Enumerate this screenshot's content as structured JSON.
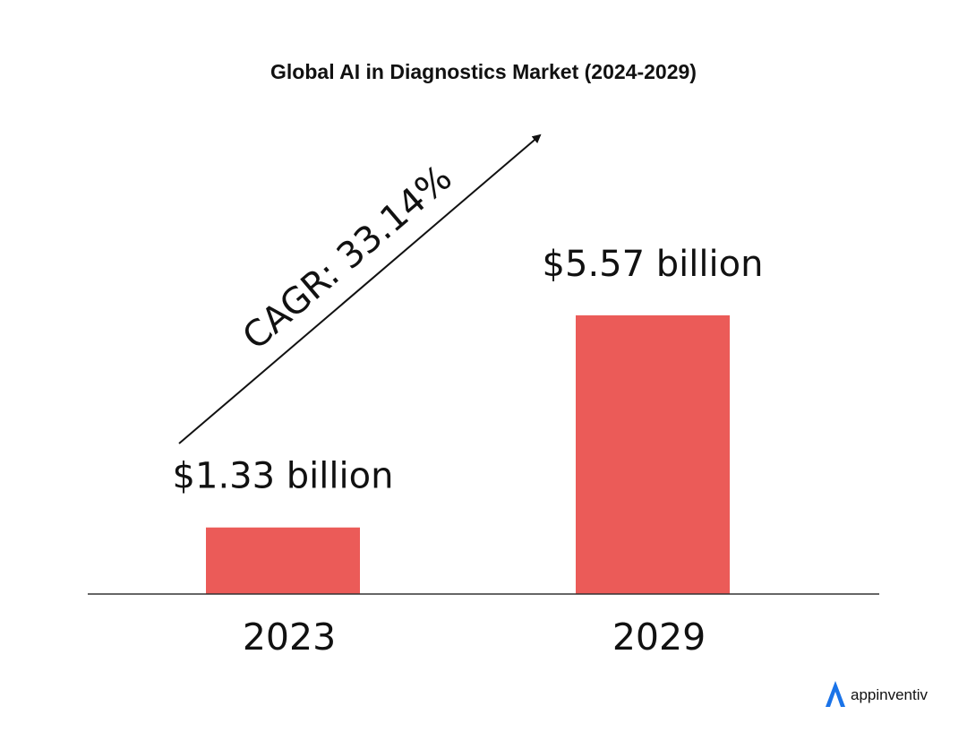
{
  "chart_data": {
    "type": "bar",
    "title": "Global AI in Diagnostics Market (2024-2029)",
    "categories": [
      "2023",
      "2029"
    ],
    "values": [
      1.33,
      5.57
    ],
    "value_labels": [
      "$1.33 billion",
      "$5.57 billion"
    ],
    "ylim": [
      0,
      7.7
    ],
    "grid": false,
    "legend": "none",
    "annotation": "CAGR: 33.14%",
    "bar_color": "#EB5B58"
  },
  "brand": {
    "name": "appinventiv",
    "logo_icon": "appinventiv-logo-icon",
    "logo_color": "#1A73E8"
  }
}
